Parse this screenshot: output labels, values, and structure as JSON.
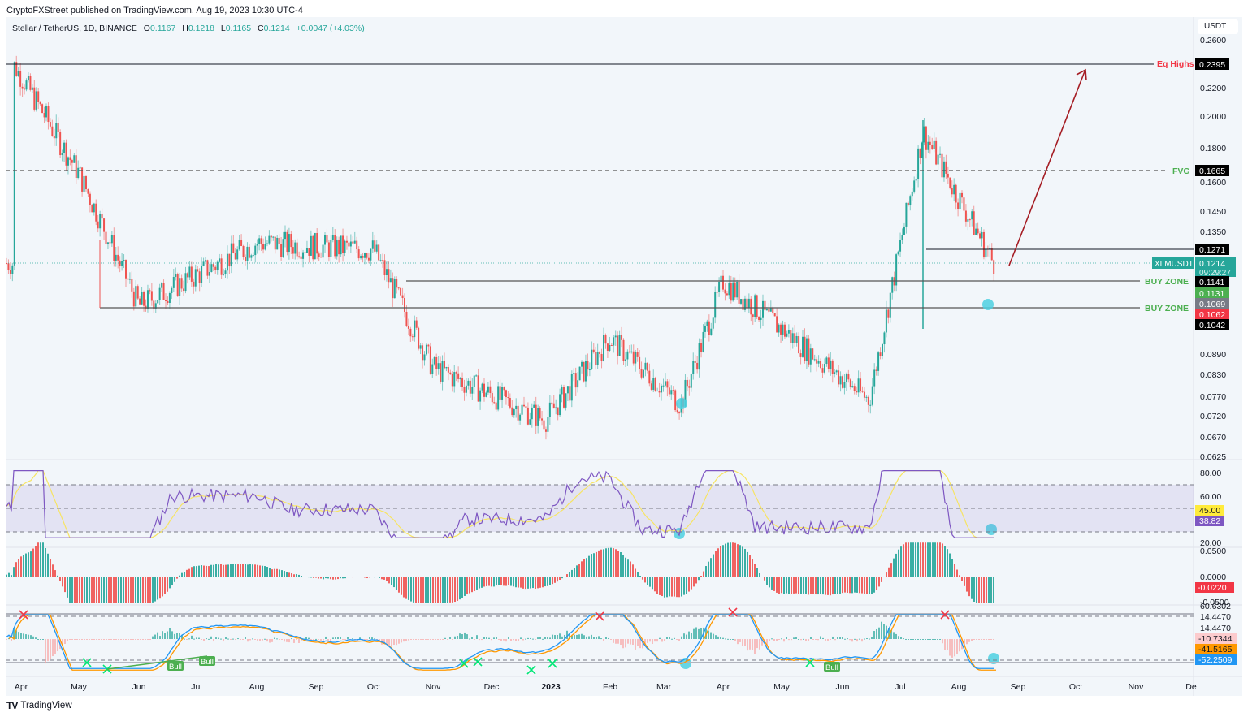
{
  "header": {
    "published": "CryptoFXStreet published on TradingView.com, Aug 19, 2023 10:30 UTC-4"
  },
  "legend": {
    "symbol": "Stellar / TetherUS, 1D, BINANCE",
    "open_label": "O",
    "open": "0.1167",
    "high_label": "H",
    "high": "0.1218",
    "low_label": "L",
    "low": "0.1165",
    "close_label": "C",
    "close": "0.1214",
    "change": "+0.0047 (+4.03%)"
  },
  "axis": {
    "currency": "USDT",
    "price_ticks": [
      "0.2600",
      "0.2200",
      "0.2000",
      "0.1800",
      "0.1600",
      "0.1450",
      "0.1350",
      "0.0890",
      "0.0830",
      "0.0770",
      "0.0720",
      "0.0670",
      "0.0625"
    ],
    "rsi_ticks": [
      "80.00",
      "60.00",
      "20.00"
    ],
    "macd_ticks": [
      "0.0500",
      "0.0000",
      "-0.0500"
    ],
    "osc_ticks": [
      "60.6302",
      "14.4470",
      "14.4470"
    ],
    "time_ticks": [
      "Apr",
      "May",
      "Jun",
      "Jul",
      "Aug",
      "Sep",
      "Oct",
      "Nov",
      "Dec",
      "2023",
      "Feb",
      "Mar",
      "Apr",
      "May",
      "Jun",
      "Jul",
      "Aug",
      "Sep",
      "Oct",
      "Nov",
      "De"
    ]
  },
  "price_labels": {
    "eq_highs": "0.2395",
    "fvg": "0.1665",
    "level_1271": "0.1271",
    "symbol_tag": "XLMUSDT",
    "last_price": "0.1214",
    "countdown": "09:29:27",
    "buy_zone_1": "0.1141",
    "green_label": "0.1131",
    "gray_label": "0.1069",
    "red_label": "0.1062",
    "buy_zone_2": "0.1042"
  },
  "annotations": {
    "eq_highs": "Eq Highs",
    "fvg": "FVG",
    "buy_zone": "BUY ZONE",
    "bull": "Bull"
  },
  "indicator_labels": {
    "rsi_ma": "45.00",
    "rsi": "38.82",
    "macd_hist": "-0.0220",
    "osc_hist": "-10.7344",
    "osc_signal": "-41.5165",
    "osc_line": "-52.2509"
  },
  "colors": {
    "up": "#26a69a",
    "down": "#ef5350",
    "eq_highs": "#f23645",
    "zone_green": "#4caf50",
    "rsi": "#7e57c2",
    "rsi_ma": "#f7e463",
    "osc_blue": "#2196f3",
    "osc_orange": "#ff9800",
    "circle": "#4dd0e1",
    "arrow": "#a51d24"
  },
  "footer": {
    "brand": "TradingView"
  },
  "chart_data": {
    "type": "candlestick",
    "title": "Stellar / TetherUS, 1D, BINANCE",
    "ylabel": "USDT",
    "ylim": [
      0.0625,
      0.26
    ],
    "x_range": [
      "Apr 2022",
      "Dec 2023"
    ],
    "horizontal_levels": [
      {
        "label": "Eq Highs",
        "value": 0.2395,
        "style": "solid"
      },
      {
        "label": "FVG",
        "value": 0.1665,
        "style": "dashed"
      },
      {
        "label": "",
        "value": 0.1271,
        "style": "solid"
      },
      {
        "label": "BUY ZONE",
        "value": 0.1141,
        "style": "solid"
      },
      {
        "label": "BUY ZONE",
        "value": 0.1042,
        "style": "solid"
      }
    ],
    "ohlc_last": {
      "open": 0.1167,
      "high": 0.1218,
      "low": 0.1165,
      "close": 0.1214,
      "change": 0.0047,
      "change_pct": 4.03
    },
    "key_points": [
      {
        "date": "Apr 2022",
        "price": 0.24
      },
      {
        "date": "May 2022",
        "price": 0.165
      },
      {
        "date": "Jun 2022",
        "price": 0.105
      },
      {
        "date": "Aug 2022",
        "price": 0.13
      },
      {
        "date": "Oct 2022",
        "price": 0.127
      },
      {
        "date": "Nov 2022",
        "price": 0.085
      },
      {
        "date": "Dec 2022",
        "price": 0.071
      },
      {
        "date": "Feb 2023",
        "price": 0.094
      },
      {
        "date": "Mar 2023",
        "price": 0.075
      },
      {
        "date": "Apr 2023",
        "price": 0.114
      },
      {
        "date": "Jun 2023",
        "price": 0.076
      },
      {
        "date": "Jul 2023",
        "price": 0.19
      },
      {
        "date": "Aug 2023",
        "price": 0.1214
      }
    ],
    "projection": {
      "from": 0.119,
      "to": 0.235,
      "direction": "up"
    },
    "indicators": [
      {
        "name": "RSI",
        "value": 38.82,
        "ma": 45.0,
        "levels": [
          70,
          50,
          30
        ],
        "ticks": [
          80,
          60,
          20
        ]
      },
      {
        "name": "MACD Histogram",
        "value": -0.022,
        "ticks": [
          0.05,
          0.0,
          -0.05
        ]
      },
      {
        "name": "Oscillator",
        "values": [
          -10.7344,
          -41.5165,
          -52.2509
        ],
        "levels": [
          60.6302,
          14.447
        ]
      }
    ]
  }
}
